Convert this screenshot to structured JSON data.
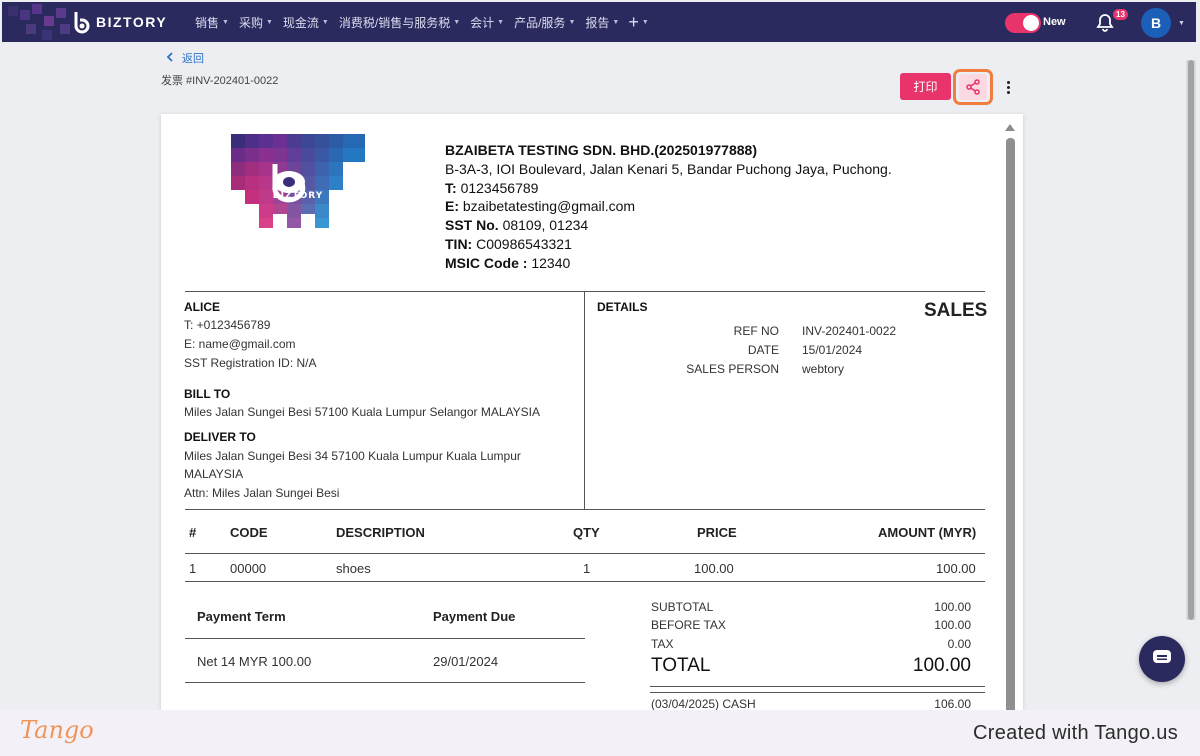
{
  "nav": {
    "brand": "BIZTORY",
    "menu": [
      {
        "label": "销售"
      },
      {
        "label": "采购"
      },
      {
        "label": "现金流"
      },
      {
        "label": "消费税/销售与服务税"
      },
      {
        "label": "会计"
      },
      {
        "label": "产品/服务"
      },
      {
        "label": "报告"
      }
    ],
    "plus": "+",
    "toggle_label": "New",
    "notification_count": "13",
    "avatar_initial": "B"
  },
  "header": {
    "back_label": "返回",
    "doc_title": "发票 #INV-202401-0022",
    "print_label": "打印"
  },
  "company": {
    "name": "BZAIBETA TESTING SDN. BHD.(202501977888)",
    "address": "B-3A-3, IOI Boulevard, Jalan Kenari 5, Bandar Puchong Jaya, Puchong.",
    "tel_label": "T:",
    "tel": "0123456789",
    "email_label": "E:",
    "email": "bzaibetatesting@gmail.com",
    "sst_label": "SST No.",
    "sst": "08109, 01234",
    "tin_label": "TIN:",
    "tin": "C00986543321",
    "msic_label": "MSIC Code :",
    "msic": "12340",
    "logo_text": "BIZTORY"
  },
  "customer": {
    "name": "ALICE",
    "tel": "T: +0123456789",
    "email": "E: name@gmail.com",
    "sst": "SST Registration ID: N/A",
    "bill_to_label": "BILL TO",
    "bill_to": "Miles Jalan Sungei Besi 57100 Kuala Lumpur Selangor MALAYSIA",
    "deliver_to_label": "DELIVER TO",
    "deliver_line1": "Miles Jalan Sungei Besi 34 57100 Kuala Lumpur Kuala Lumpur",
    "deliver_line2": "MALAYSIA",
    "attn": "Attn: Miles Jalan Sungei Besi"
  },
  "details": {
    "label": "DETAILS",
    "type": "SALES",
    "ref_label": "REF NO",
    "ref": "INV-202401-0022",
    "date_label": "DATE",
    "date": "15/01/2024",
    "salesperson_label": "SALES PERSON",
    "salesperson": "webtory"
  },
  "items_table": {
    "headers": {
      "num": "#",
      "code": "CODE",
      "desc": "DESCRIPTION",
      "qty": "QTY",
      "price": "PRICE",
      "amount": "AMOUNT (MYR)"
    },
    "rows": [
      {
        "num": "1",
        "code": "00000",
        "desc": "shoes",
        "qty": "1",
        "price": "100.00",
        "amount": "100.00"
      }
    ]
  },
  "payment": {
    "term_header": "Payment Term",
    "due_header": "Payment Due",
    "term": "Net 14 MYR 100.00",
    "due": "29/01/2024"
  },
  "summary": {
    "subtotal_label": "SUBTOTAL",
    "subtotal": "100.00",
    "before_tax_label": "BEFORE TAX",
    "before_tax": "100.00",
    "tax_label": "TAX",
    "tax": "0.00",
    "total_label": "TOTAL",
    "total": "100.00",
    "payment_line_label": "(03/04/2025) CASH",
    "payment_line": "106.00"
  },
  "footer": {
    "tango": "Tango",
    "created": "Created with Tango.us"
  },
  "colors": {
    "nav_bg": "#2b2a5e",
    "accent": "#e8336b",
    "highlight": "#f07c3e",
    "link": "#2f73c9"
  }
}
